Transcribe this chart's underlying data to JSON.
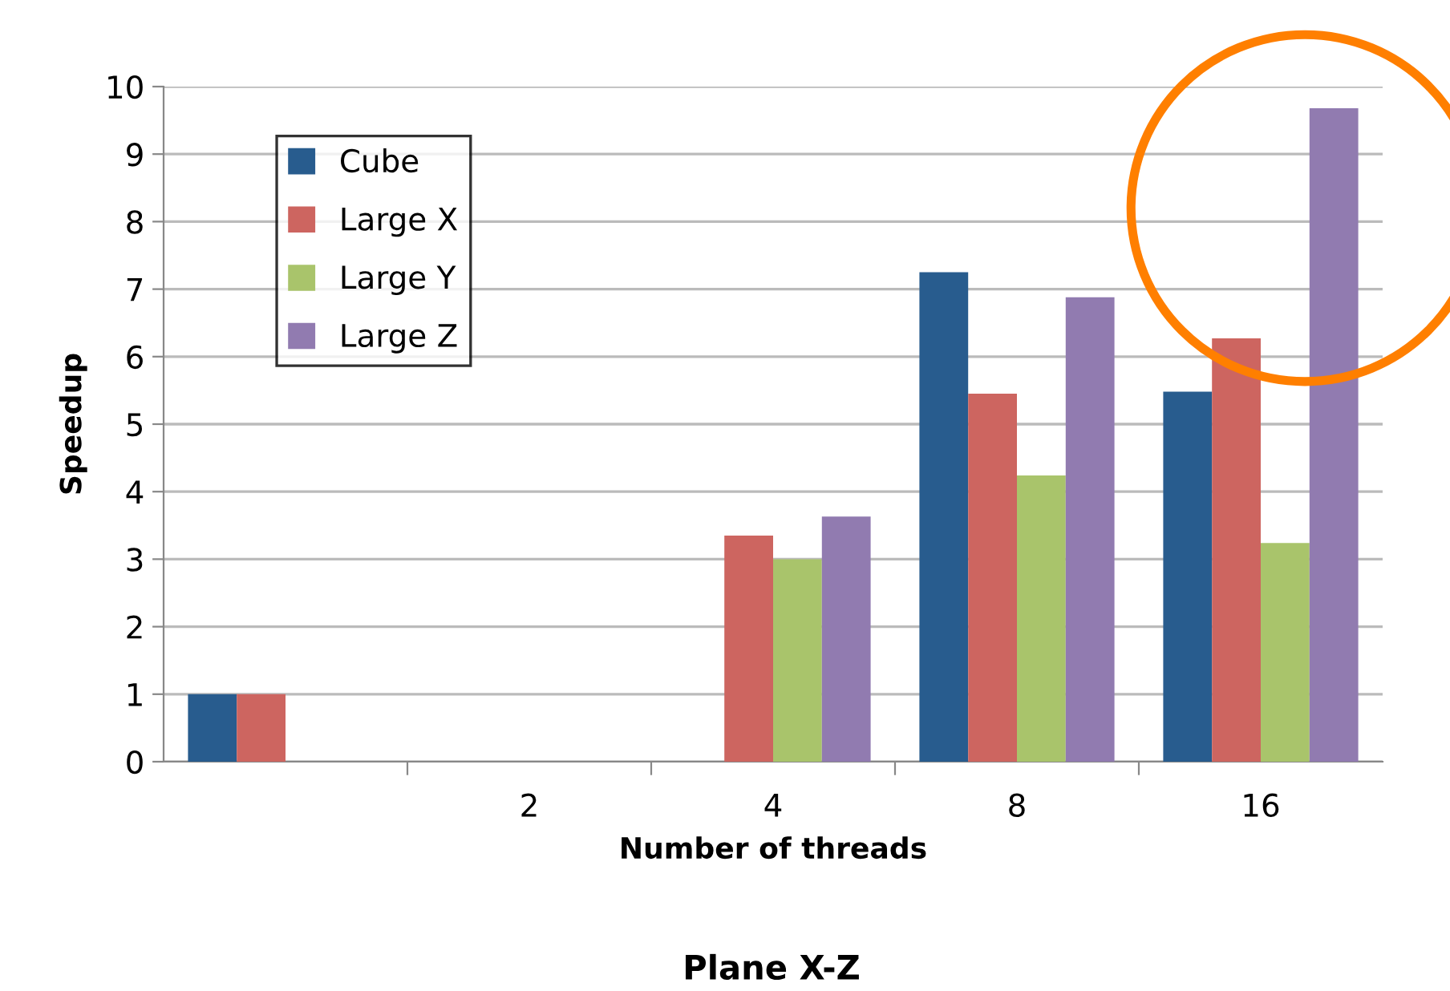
{
  "chart_data": {
    "type": "bar",
    "xlabel": "Number of threads",
    "ylabel": "Speedup",
    "categories": [
      null,
      "2",
      "4",
      "8",
      "16"
    ],
    "series": [
      {
        "name": "Cube",
        "color": "#285c8e",
        "values": [
          1.0,
          null,
          null,
          7.25,
          5.48
        ]
      },
      {
        "name": "Large X",
        "color": "#cd6560",
        "values": [
          1.0,
          null,
          3.35,
          5.45,
          6.27
        ]
      },
      {
        "name": "Large Y",
        "color": "#a9c46b",
        "values": [
          null,
          null,
          3.0,
          4.24,
          3.24
        ]
      },
      {
        "name": "Large Z",
        "color": "#917bb0",
        "values": [
          null,
          null,
          3.63,
          6.88,
          9.68
        ]
      }
    ],
    "ylim": [
      0,
      10
    ],
    "yticks": [
      0,
      1,
      2,
      3,
      4,
      5,
      6,
      7,
      8,
      9,
      10
    ],
    "grid": "y",
    "legend": "top left",
    "annotations": [
      "Plane X-Z"
    ]
  }
}
